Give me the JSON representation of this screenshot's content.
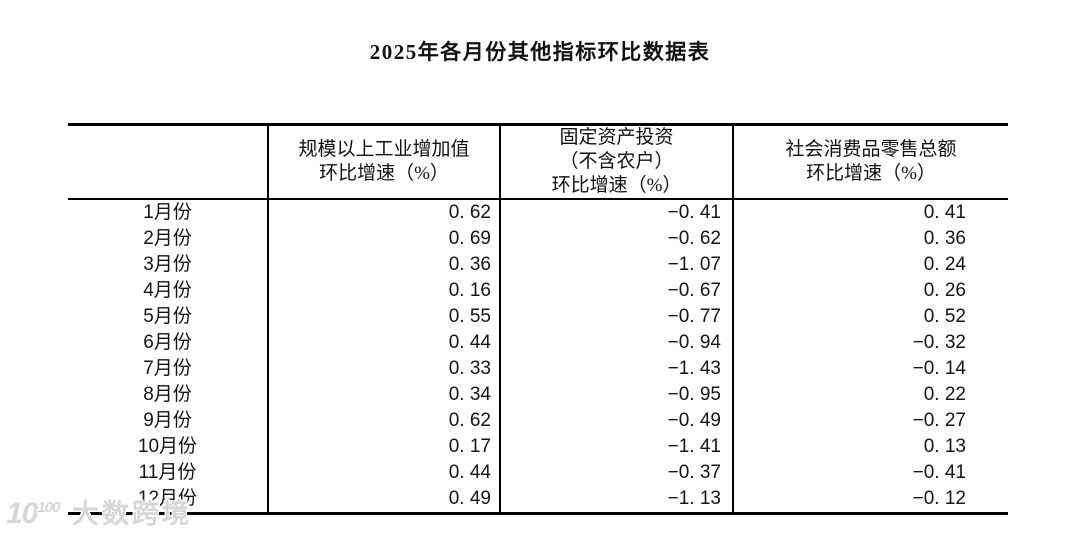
{
  "title": "2025年各月份其他指标环比数据表",
  "colors": {
    "background": "#ffffff",
    "border": "#000000",
    "text": "#141414",
    "watermark": "#d7d7d7"
  },
  "table": {
    "headers": {
      "month": "",
      "industrial": "规模以上工业增加值\n环比增速（%）",
      "investment": "固定资产投资\n（不含农户）\n环比增速（%）",
      "retail": "社会消费品零售总额\n环比增速（%）"
    },
    "rows": [
      {
        "month": "1月份",
        "industrial": "0. 62",
        "investment": "−0. 41",
        "retail": "0. 41"
      },
      {
        "month": "2月份",
        "industrial": "0. 69",
        "investment": "−0. 62",
        "retail": "0. 36"
      },
      {
        "month": "3月份",
        "industrial": "0. 36",
        "investment": "−1. 07",
        "retail": "0. 24"
      },
      {
        "month": "4月份",
        "industrial": "0. 16",
        "investment": "−0. 67",
        "retail": "0. 26"
      },
      {
        "month": "5月份",
        "industrial": "0. 55",
        "investment": "−0. 77",
        "retail": "0. 52"
      },
      {
        "month": "6月份",
        "industrial": "0. 44",
        "investment": "−0. 94",
        "retail": "−0. 32"
      },
      {
        "month": "7月份",
        "industrial": "0. 33",
        "investment": "−1. 43",
        "retail": "−0. 14"
      },
      {
        "month": "8月份",
        "industrial": "0. 34",
        "investment": "−0. 95",
        "retail": "0. 22"
      },
      {
        "month": "9月份",
        "industrial": "0. 62",
        "investment": "−0. 49",
        "retail": "−0. 27"
      },
      {
        "month": "10月份",
        "industrial": "0. 17",
        "investment": "−1. 41",
        "retail": "0. 13"
      },
      {
        "month": "11月份",
        "industrial": "0. 44",
        "investment": "−0. 37",
        "retail": "−0. 41"
      },
      {
        "month": "12月份",
        "industrial": "0. 49",
        "investment": "−1. 13",
        "retail": "−0. 12"
      }
    ]
  },
  "watermark": {
    "logo_base": "10",
    "logo_sup": "100",
    "text": "大数跨境"
  },
  "chart_data": {
    "type": "table",
    "title": "2025年各月份其他指标环比数据表",
    "categories": [
      "1月份",
      "2月份",
      "3月份",
      "4月份",
      "5月份",
      "6月份",
      "7月份",
      "8月份",
      "9月份",
      "10月份",
      "11月份",
      "12月份"
    ],
    "series": [
      {
        "name": "规模以上工业增加值环比增速（%）",
        "values": [
          0.62,
          0.69,
          0.36,
          0.16,
          0.55,
          0.44,
          0.33,
          0.34,
          0.62,
          0.17,
          0.44,
          0.49
        ]
      },
      {
        "name": "固定资产投资（不含农户）环比增速（%）",
        "values": [
          -0.41,
          -0.62,
          -1.07,
          -0.67,
          -0.77,
          -0.94,
          -1.43,
          -0.95,
          -0.49,
          -1.41,
          -0.37,
          -1.13
        ]
      },
      {
        "name": "社会消费品零售总额环比增速（%）",
        "values": [
          0.41,
          0.36,
          0.24,
          0.26,
          0.52,
          -0.32,
          -0.14,
          0.22,
          -0.27,
          0.13,
          -0.41,
          -0.12
        ]
      }
    ]
  }
}
